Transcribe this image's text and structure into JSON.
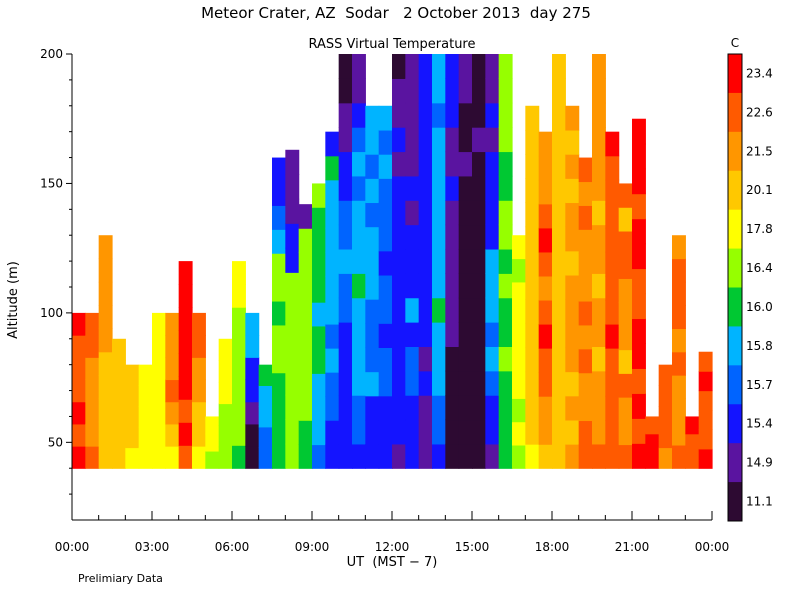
{
  "chart_data": {
    "type": "heatmap",
    "title": "Meteor Crater, AZ  Sodar   2 October 2013  day 275",
    "subtitle": "RASS Virtual Temperature",
    "xlabel": "UT  (MST − 7)",
    "ylabel": "Altitude (m)",
    "footnote": "Prelimiary Data",
    "xlim": [
      0,
      24
    ],
    "ylim": [
      20,
      200
    ],
    "x_ticks": [
      {
        "value": 0,
        "label": "00:00"
      },
      {
        "value": 3,
        "label": "03:00"
      },
      {
        "value": 6,
        "label": "06:00"
      },
      {
        "value": 9,
        "label": "09:00"
      },
      {
        "value": 12,
        "label": "12:00"
      },
      {
        "value": 15,
        "label": "15:00"
      },
      {
        "value": 18,
        "label": "18:00"
      },
      {
        "value": 21,
        "label": "21:00"
      },
      {
        "value": 24,
        "label": "00:00"
      }
    ],
    "y_ticks": [
      {
        "value": 50,
        "label": "50"
      },
      {
        "value": 100,
        "label": "100"
      },
      {
        "value": 150,
        "label": "150"
      },
      {
        "value": 200,
        "label": "200"
      }
    ],
    "colorbar": {
      "unit": "C",
      "levels": [
        {
          "label": "23.4",
          "color": "#ff0000"
        },
        {
          "label": "22.6",
          "color": "#ff5a00"
        },
        {
          "label": "21.5",
          "color": "#ff9600"
        },
        {
          "label": "20.1",
          "color": "#ffc800"
        },
        {
          "label": "17.8",
          "color": "#ffff00"
        },
        {
          "label": "16.4",
          "color": "#96ff00"
        },
        {
          "label": "16.0",
          "color": "#00c832"
        },
        {
          "label": "15.8",
          "color": "#00b4ff"
        },
        {
          "label": "15.7",
          "color": "#0064ff"
        },
        {
          "label": "15.4",
          "color": "#1414ff"
        },
        {
          "label": "14.9",
          "color": "#5a14a0"
        },
        {
          "label": "11.1",
          "color": "#2d0a32"
        }
      ]
    },
    "data_bottom_altitude_m": 40,
    "profiles": [
      {
        "t": 0.0,
        "top": 100,
        "values": [
          23.5,
          23.3,
          23.4,
          22.9,
          22.9,
          22.7,
          23.4
        ]
      },
      {
        "t": 0.5,
        "top": 100,
        "values": [
          22.6,
          22.5,
          22.3,
          22.3,
          22.4,
          22.7,
          22.6
        ]
      },
      {
        "t": 1.0,
        "top": 130,
        "values": [
          21.0,
          21.0,
          21.3,
          21.3,
          21.3,
          21.6,
          21.7,
          22.0,
          21.9,
          21.6
        ]
      },
      {
        "t": 1.5,
        "top": 90,
        "values": [
          20.6,
          20.6,
          20.3,
          20.9,
          20.3,
          20.8
        ]
      },
      {
        "t": 2.0,
        "top": 80,
        "values": [
          18.9,
          20.7,
          20.7,
          20.9,
          20.4
        ]
      },
      {
        "t": 2.5,
        "top": 80,
        "values": [
          19.6,
          20.0,
          18.9,
          19.2,
          19.4
        ]
      },
      {
        "t": 3.0,
        "top": 100,
        "values": [
          17.9,
          18.5,
          18.6,
          18.0,
          19.4,
          18.3,
          19.9
        ]
      },
      {
        "t": 3.5,
        "top": 100,
        "values": [
          20.0,
          20.7,
          21.6,
          22.6,
          22.1,
          22.2,
          22.1
        ]
      },
      {
        "t": 4.0,
        "top": 120,
        "values": [
          23.2,
          23.5,
          23.3,
          23.5,
          23.4,
          23.5,
          23.5,
          23.4,
          23.5
        ]
      },
      {
        "t": 4.5,
        "top": 100,
        "values": [
          19.4,
          20.5,
          21.3,
          21.8,
          22.4,
          22.7,
          22.8
        ]
      },
      {
        "t": 5.0,
        "top": 60,
        "values": [
          16.9,
          19.1,
          18.3
        ]
      },
      {
        "t": 5.5,
        "top": 90,
        "values": [
          16.6,
          16.9,
          17.3,
          18.0,
          18.0,
          18.3
        ]
      },
      {
        "t": 6.0,
        "top": 120,
        "values": [
          16.1,
          16.5,
          16.7,
          17.3,
          17.3,
          17.5,
          17.3,
          18.1,
          18.6
        ]
      },
      {
        "t": 6.5,
        "top": 100,
        "values": [
          14.5,
          14.8,
          15.1,
          15.4,
          15.6,
          15.8,
          15.9
        ]
      },
      {
        "t": 7.0,
        "top": 80,
        "values": [
          15.7,
          15.7,
          15.9,
          15.9,
          16.1
        ]
      },
      {
        "t": 7.5,
        "top": 160,
        "values": [
          16.3,
          16.1,
          16.3,
          16.1,
          16.6,
          16.5,
          16.1,
          16.4,
          16.6,
          15.9,
          15.7,
          15.6,
          15.5
        ]
      },
      {
        "t": 8.0,
        "top": 163,
        "values": [
          16.6,
          16.4,
          16.4,
          16.4,
          16.8,
          16.5,
          16.4,
          16.7,
          15.6,
          15.5,
          15.3,
          15.1,
          14.9
        ]
      },
      {
        "t": 8.5,
        "top": 142,
        "values": [
          16.2,
          16.3,
          16.5,
          16.4,
          16.6,
          16.7,
          16.5,
          17.0,
          16.8,
          16.7,
          14.9
        ]
      },
      {
        "t": 9.0,
        "top": 150,
        "values": [
          15.7,
          15.8,
          15.8,
          15.9,
          16.0,
          16.1,
          15.9,
          16.2,
          16.0,
          16.3,
          16.1,
          16.5
        ]
      },
      {
        "t": 9.5,
        "top": 170,
        "values": [
          15.5,
          15.6,
          15.7,
          15.7,
          15.8,
          15.7,
          15.8,
          15.9,
          15.8,
          15.9,
          15.9,
          15.9,
          16.0,
          15.6
        ]
      },
      {
        "t": 10.0,
        "top": 200,
        "values": [
          15.4,
          15.5,
          15.5,
          15.6,
          15.6,
          15.6,
          15.7,
          15.7,
          15.8,
          15.7,
          15.7,
          15.6,
          15.4,
          15.2,
          15.0,
          14.8,
          13.0
        ]
      },
      {
        "t": 10.5,
        "top": 200,
        "values": [
          15.6,
          15.7,
          15.7,
          15.8,
          15.9,
          15.9,
          15.8,
          16.0,
          15.8,
          15.9,
          15.8,
          15.7,
          15.9,
          15.7,
          15.6,
          15.3,
          15.1
        ]
      },
      {
        "t": 11.0,
        "top": 180,
        "values": [
          15.5,
          15.6,
          15.6,
          15.8,
          15.7,
          15.7,
          15.7,
          15.8,
          15.8,
          15.9,
          15.7,
          15.8,
          15.7,
          15.8,
          15.8
        ]
      },
      {
        "t": 11.5,
        "top": 180,
        "values": [
          15.5,
          15.5,
          15.6,
          15.7,
          15.7,
          15.6,
          15.7,
          15.7,
          15.6,
          15.7,
          15.7,
          15.7,
          15.8,
          15.7,
          15.8
        ]
      },
      {
        "t": 12.0,
        "top": 200,
        "values": [
          15.3,
          15.4,
          15.4,
          15.5,
          15.4,
          15.5,
          15.6,
          15.5,
          15.6,
          15.5,
          15.6,
          15.5,
          15.3,
          15.4,
          15.1,
          15.0,
          14.7
        ]
      },
      {
        "t": 12.5,
        "top": 200,
        "values": [
          15.5,
          15.6,
          15.6,
          15.7,
          15.7,
          15.6,
          15.8,
          15.6,
          15.5,
          15.6,
          15.3,
          15.4,
          15.2,
          15.3,
          15.0,
          15.1,
          15.0
        ]
      },
      {
        "t": 13.0,
        "top": 200,
        "values": [
          15.2,
          15.3,
          15.3,
          15.4,
          15.3,
          15.4,
          15.5,
          15.5,
          15.6,
          15.5,
          15.6,
          15.5,
          15.6,
          15.5,
          15.5,
          15.6,
          15.5
        ]
      },
      {
        "t": 13.5,
        "top": 200,
        "values": [
          15.6,
          15.7,
          15.7,
          15.8,
          15.9,
          15.8,
          16.0,
          15.9,
          15.8,
          15.9,
          15.8,
          15.8,
          15.8,
          15.9,
          15.7,
          15.8,
          15.8
        ]
      },
      {
        "t": 14.0,
        "top": 200,
        "values": [
          14.6,
          14.0,
          13.5,
          14.2,
          14.7,
          14.9,
          15.1,
          15.0,
          14.9,
          15.0,
          15.3,
          15.4,
          15.3,
          15.2,
          15.5,
          15.6,
          15.4
        ]
      },
      {
        "t": 14.5,
        "top": 200,
        "values": [
          11.5,
          11.8,
          12.5,
          12.0,
          12.8,
          13.5,
          13.0,
          14.5,
          14.8,
          14.6,
          14.2,
          14.8,
          14.9,
          14.5,
          14.8,
          14.9,
          15.0
        ]
      },
      {
        "t": 15.0,
        "top": 200,
        "values": [
          12.2,
          11.5,
          11.8,
          12.0,
          11.9,
          12.8,
          13.2,
          12.5,
          13.8,
          14.0,
          14.6,
          14.8,
          14.5,
          14.9,
          14.2,
          14.7,
          14.8
        ]
      },
      {
        "t": 15.5,
        "top": 200,
        "values": [
          15.0,
          15.4,
          15.6,
          15.7,
          15.8,
          15.7,
          15.8,
          15.9,
          15.8,
          15.6,
          15.5,
          15.5,
          15.4,
          15.3,
          15.6,
          15.2,
          15.0
        ]
      },
      {
        "t": 16.0,
        "top": 200,
        "values": [
          16.1,
          16.0,
          16.3,
          16.2,
          16.4,
          16.1,
          16.3,
          16.5,
          16.2,
          16.4,
          16.6,
          16.3,
          16.2,
          16.5,
          16.7,
          16.4,
          16.5
        ]
      },
      {
        "t": 16.5,
        "top": 130,
        "values": [
          17.2,
          18.0,
          17.5,
          18.2,
          17.8,
          18.5,
          17.9,
          18.1,
          17.6,
          18.4
        ]
      },
      {
        "t": 17.0,
        "top": 180,
        "values": [
          19.0,
          20.2,
          20.5,
          20.9,
          20.3,
          21.0,
          20.6,
          20.4,
          20.8,
          20.9,
          21.2,
          20.7,
          21.0,
          20.5,
          20.8
        ]
      },
      {
        "t": 17.5,
        "top": 170,
        "values": [
          21.4,
          21.6,
          22.0,
          22.8,
          23.0,
          23.4,
          22.7,
          22.3,
          22.9,
          23.5,
          23.0,
          22.4,
          21.8,
          22.2
        ]
      },
      {
        "t": 18.0,
        "top": 200,
        "values": [
          20.8,
          20.4,
          20.9,
          20.8,
          20.5,
          21.0,
          20.3,
          20.9,
          20.4,
          20.7,
          21.0,
          20.6,
          20.2,
          20.9,
          21.2,
          20.7,
          20.9
        ]
      },
      {
        "t": 18.5,
        "top": 180,
        "values": [
          21.6,
          21.2,
          21.8,
          20.9,
          21.7,
          21.9,
          21.6,
          21.7,
          20.8,
          21.8,
          21.6,
          20.6,
          21.7,
          20.3,
          21.8
        ]
      },
      {
        "t": 19.0,
        "top": 160,
        "values": [
          22.8,
          23.0,
          21.6,
          22.3,
          22.8,
          21.8,
          23.2,
          22.4,
          22.5,
          21.9,
          23.0,
          22.3,
          22.6
        ]
      },
      {
        "t": 19.5,
        "top": 200,
        "values": [
          23.0,
          22.5,
          22.1,
          21.5,
          21.1,
          22.0,
          21.7,
          21.0,
          21.8,
          21.6,
          21.4,
          21.6,
          21.7,
          21.6,
          21.8,
          21.5,
          21.7
        ]
      },
      {
        "t": 20.0,
        "top": 170,
        "values": [
          22.9,
          23.0,
          23.2,
          22.8,
          22.9,
          23.5,
          23.1,
          23.2,
          23.0,
          23.3,
          22.9,
          23.2,
          23.1,
          23.4
        ]
      },
      {
        "t": 20.5,
        "top": 150,
        "values": [
          22.6,
          21.5,
          22.4,
          22.8,
          21.0,
          22.5,
          22.0,
          21.6,
          22.6,
          22.7,
          21.4,
          22.6
        ]
      },
      {
        "t": 21.0,
        "top": 175,
        "values": [
          23.4,
          23.2,
          23.5,
          23.3,
          23.4,
          23.5,
          23.0,
          23.2,
          23.5,
          23.4,
          23.3,
          23.5,
          23.4,
          23.5
        ]
      },
      {
        "t": 21.5,
        "top": 60,
        "values": [
          23.5,
          23.4,
          23.3
        ]
      },
      {
        "t": 22.0,
        "top": 80,
        "values": [
          22.2,
          23.0,
          22.7,
          23.3,
          23.0
        ]
      },
      {
        "t": 22.5,
        "top": 130,
        "values": [
          22.9,
          22.4,
          21.9,
          22.3,
          22.9,
          22.4,
          23.0,
          23.0,
          22.7,
          21.8
        ]
      },
      {
        "t": 23.0,
        "top": 60,
        "values": [
          23.1,
          22.9,
          23.5
        ]
      },
      {
        "t": 23.5,
        "top": 85,
        "values": [
          23.4,
          22.7,
          23.3,
          23.0,
          23.5,
          22.8
        ]
      }
    ]
  }
}
